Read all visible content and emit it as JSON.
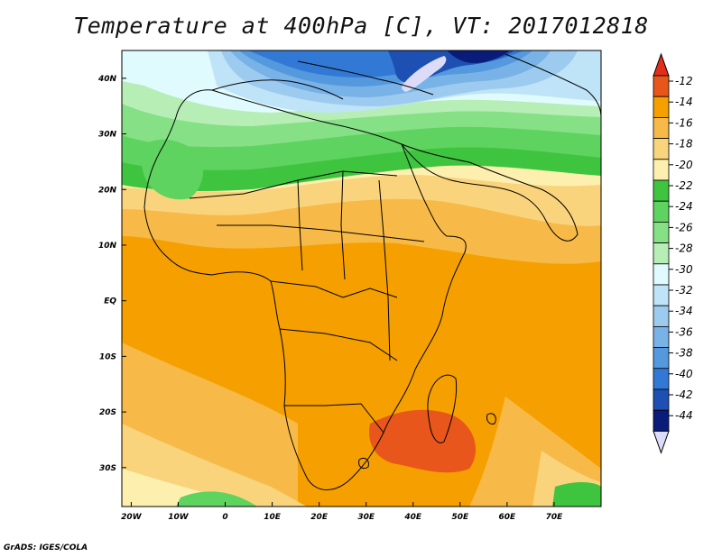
{
  "title": "Temperature at 400hPa [C], VT: 2017012818",
  "credit": "GrADS: IGES/COLA",
  "map": {
    "lon_range": [
      -22,
      80
    ],
    "lat_range": [
      -37,
      45
    ],
    "lon_ticks": [
      {
        "value": -20,
        "label": "20W"
      },
      {
        "value": -10,
        "label": "10W"
      },
      {
        "value": 0,
        "label": "0"
      },
      {
        "value": 10,
        "label": "10E"
      },
      {
        "value": 20,
        "label": "20E"
      },
      {
        "value": 30,
        "label": "30E"
      },
      {
        "value": 40,
        "label": "40E"
      },
      {
        "value": 50,
        "label": "50E"
      },
      {
        "value": 60,
        "label": "60E"
      },
      {
        "value": 70,
        "label": "70E"
      }
    ],
    "lat_ticks": [
      {
        "value": 40,
        "label": "40N"
      },
      {
        "value": 30,
        "label": "30N"
      },
      {
        "value": 20,
        "label": "20N"
      },
      {
        "value": 10,
        "label": "10N"
      },
      {
        "value": 0,
        "label": "EQ"
      },
      {
        "value": -10,
        "label": "10S"
      },
      {
        "value": -20,
        "label": "20S"
      },
      {
        "value": -30,
        "label": "30S"
      }
    ]
  },
  "colorbar": {
    "levels": [
      {
        "label": "-12",
        "color": "#e8561c"
      },
      {
        "label": "-14",
        "color": "#f5a000"
      },
      {
        "label": "-16",
        "color": "#f7ba48"
      },
      {
        "label": "-18",
        "color": "#fad47c"
      },
      {
        "label": "-20",
        "color": "#fdf0ae"
      },
      {
        "label": "-22",
        "color": "#3fc43f"
      },
      {
        "label": "-24",
        "color": "#5fd35f"
      },
      {
        "label": "-26",
        "color": "#86e086"
      },
      {
        "label": "-28",
        "color": "#b6eeb6"
      },
      {
        "label": "-30",
        "color": "#e0fbfd"
      },
      {
        "label": "-32",
        "color": "#bfe3f7"
      },
      {
        "label": "-34",
        "color": "#9ccbef"
      },
      {
        "label": "-36",
        "color": "#78b2e7"
      },
      {
        "label": "-38",
        "color": "#5498de"
      },
      {
        "label": "-40",
        "color": "#3279d5"
      },
      {
        "label": "-42",
        "color": "#1e4fb3"
      },
      {
        "label": "-44",
        "color": "#0a1c7a"
      }
    ],
    "top_color": "#e0301a",
    "bottom_color": "#dcdcf8"
  }
}
